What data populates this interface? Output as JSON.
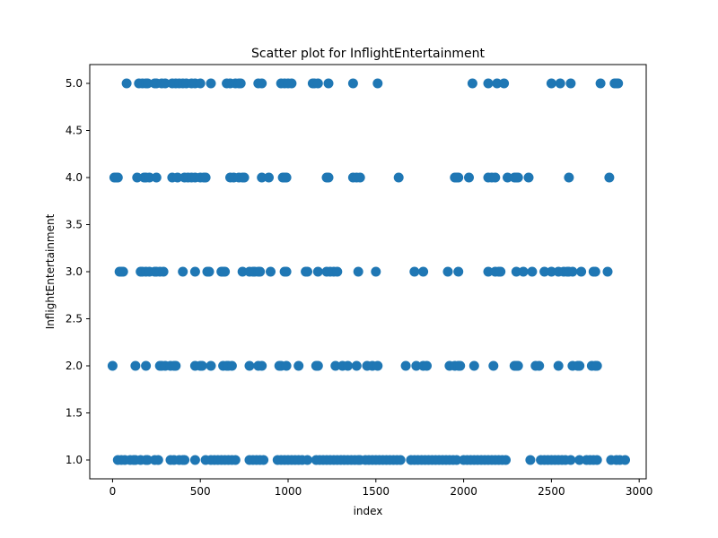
{
  "chart_data": {
    "type": "scatter",
    "title": "Scatter plot for InflightEntertainment",
    "xlabel": "index",
    "ylabel": "InflightEntertainment",
    "xlim": [
      -130,
      3040
    ],
    "ylim": [
      0.8,
      5.2
    ],
    "xticks": [
      0,
      500,
      1000,
      1500,
      2000,
      2500,
      3000
    ],
    "xtick_labels": [
      "0",
      "500",
      "1000",
      "1500",
      "2000",
      "2500",
      "3000"
    ],
    "yticks": [
      1.0,
      1.5,
      2.0,
      2.5,
      3.0,
      3.5,
      4.0,
      4.5,
      5.0
    ],
    "ytick_labels": [
      "1.0",
      "1.5",
      "2.0",
      "2.5",
      "3.0",
      "3.5",
      "4.0",
      "4.5",
      "5.0"
    ],
    "grid": false,
    "marker_color": "#1f77b4",
    "series": [
      {
        "points": [
          [
            80,
            5
          ],
          [
            150,
            5
          ],
          [
            170,
            5
          ],
          [
            190,
            5
          ],
          [
            200,
            5
          ],
          [
            240,
            5
          ],
          [
            250,
            5
          ],
          [
            280,
            5
          ],
          [
            300,
            5
          ],
          [
            340,
            5
          ],
          [
            360,
            5
          ],
          [
            380,
            5
          ],
          [
            400,
            5
          ],
          [
            420,
            5
          ],
          [
            450,
            5
          ],
          [
            470,
            5
          ],
          [
            500,
            5
          ],
          [
            560,
            5
          ],
          [
            650,
            5
          ],
          [
            670,
            5
          ],
          [
            700,
            5
          ],
          [
            720,
            5
          ],
          [
            730,
            5
          ],
          [
            830,
            5
          ],
          [
            850,
            5
          ],
          [
            960,
            5
          ],
          [
            980,
            5
          ],
          [
            1000,
            5
          ],
          [
            1020,
            5
          ],
          [
            1140,
            5
          ],
          [
            1150,
            5
          ],
          [
            1170,
            5
          ],
          [
            1230,
            5
          ],
          [
            1370,
            5
          ],
          [
            1510,
            5
          ],
          [
            2050,
            5
          ],
          [
            2140,
            5
          ],
          [
            2190,
            5
          ],
          [
            2230,
            5
          ],
          [
            2500,
            5
          ],
          [
            2550,
            5
          ],
          [
            2610,
            5
          ],
          [
            2780,
            5
          ],
          [
            2860,
            5
          ],
          [
            2870,
            5
          ],
          [
            2880,
            5
          ],
          [
            10,
            4
          ],
          [
            20,
            4
          ],
          [
            30,
            4
          ],
          [
            140,
            4
          ],
          [
            180,
            4
          ],
          [
            190,
            4
          ],
          [
            210,
            4
          ],
          [
            250,
            4
          ],
          [
            340,
            4
          ],
          [
            370,
            4
          ],
          [
            410,
            4
          ],
          [
            430,
            4
          ],
          [
            450,
            4
          ],
          [
            470,
            4
          ],
          [
            500,
            4
          ],
          [
            520,
            4
          ],
          [
            530,
            4
          ],
          [
            670,
            4
          ],
          [
            690,
            4
          ],
          [
            720,
            4
          ],
          [
            740,
            4
          ],
          [
            750,
            4
          ],
          [
            850,
            4
          ],
          [
            890,
            4
          ],
          [
            970,
            4
          ],
          [
            980,
            4
          ],
          [
            990,
            4
          ],
          [
            1220,
            4
          ],
          [
            1230,
            4
          ],
          [
            1370,
            4
          ],
          [
            1390,
            4
          ],
          [
            1410,
            4
          ],
          [
            1630,
            4
          ],
          [
            1950,
            4
          ],
          [
            1960,
            4
          ],
          [
            1970,
            4
          ],
          [
            2030,
            4
          ],
          [
            2140,
            4
          ],
          [
            2160,
            4
          ],
          [
            2180,
            4
          ],
          [
            2250,
            4
          ],
          [
            2290,
            4
          ],
          [
            2300,
            4
          ],
          [
            2310,
            4
          ],
          [
            2370,
            4
          ],
          [
            2600,
            4
          ],
          [
            2830,
            4
          ],
          [
            40,
            3
          ],
          [
            50,
            3
          ],
          [
            60,
            3
          ],
          [
            160,
            3
          ],
          [
            170,
            3
          ],
          [
            190,
            3
          ],
          [
            210,
            3
          ],
          [
            240,
            3
          ],
          [
            250,
            3
          ],
          [
            270,
            3
          ],
          [
            290,
            3
          ],
          [
            400,
            3
          ],
          [
            470,
            3
          ],
          [
            540,
            3
          ],
          [
            550,
            3
          ],
          [
            620,
            3
          ],
          [
            630,
            3
          ],
          [
            640,
            3
          ],
          [
            740,
            3
          ],
          [
            780,
            3
          ],
          [
            800,
            3
          ],
          [
            810,
            3
          ],
          [
            830,
            3
          ],
          [
            840,
            3
          ],
          [
            900,
            3
          ],
          [
            980,
            3
          ],
          [
            990,
            3
          ],
          [
            1100,
            3
          ],
          [
            1110,
            3
          ],
          [
            1170,
            3
          ],
          [
            1220,
            3
          ],
          [
            1240,
            3
          ],
          [
            1260,
            3
          ],
          [
            1280,
            3
          ],
          [
            1400,
            3
          ],
          [
            1500,
            3
          ],
          [
            1720,
            3
          ],
          [
            1770,
            3
          ],
          [
            1910,
            3
          ],
          [
            1970,
            3
          ],
          [
            2140,
            3
          ],
          [
            2180,
            3
          ],
          [
            2200,
            3
          ],
          [
            2210,
            3
          ],
          [
            2300,
            3
          ],
          [
            2340,
            3
          ],
          [
            2390,
            3
          ],
          [
            2460,
            3
          ],
          [
            2500,
            3
          ],
          [
            2540,
            3
          ],
          [
            2570,
            3
          ],
          [
            2590,
            3
          ],
          [
            2600,
            3
          ],
          [
            2620,
            3
          ],
          [
            2670,
            3
          ],
          [
            2740,
            3
          ],
          [
            2750,
            3
          ],
          [
            2820,
            3
          ],
          [
            0,
            2
          ],
          [
            130,
            2
          ],
          [
            190,
            2
          ],
          [
            270,
            2
          ],
          [
            280,
            2
          ],
          [
            300,
            2
          ],
          [
            330,
            2
          ],
          [
            350,
            2
          ],
          [
            360,
            2
          ],
          [
            470,
            2
          ],
          [
            500,
            2
          ],
          [
            510,
            2
          ],
          [
            560,
            2
          ],
          [
            630,
            2
          ],
          [
            650,
            2
          ],
          [
            660,
            2
          ],
          [
            680,
            2
          ],
          [
            780,
            2
          ],
          [
            830,
            2
          ],
          [
            850,
            2
          ],
          [
            950,
            2
          ],
          [
            960,
            2
          ],
          [
            990,
            2
          ],
          [
            1060,
            2
          ],
          [
            1160,
            2
          ],
          [
            1170,
            2
          ],
          [
            1270,
            2
          ],
          [
            1310,
            2
          ],
          [
            1340,
            2
          ],
          [
            1390,
            2
          ],
          [
            1450,
            2
          ],
          [
            1480,
            2
          ],
          [
            1510,
            2
          ],
          [
            1670,
            2
          ],
          [
            1730,
            2
          ],
          [
            1770,
            2
          ],
          [
            1790,
            2
          ],
          [
            1920,
            2
          ],
          [
            1950,
            2
          ],
          [
            1970,
            2
          ],
          [
            1980,
            2
          ],
          [
            2060,
            2
          ],
          [
            2170,
            2
          ],
          [
            2290,
            2
          ],
          [
            2300,
            2
          ],
          [
            2310,
            2
          ],
          [
            2410,
            2
          ],
          [
            2430,
            2
          ],
          [
            2540,
            2
          ],
          [
            2620,
            2
          ],
          [
            2650,
            2
          ],
          [
            2660,
            2
          ],
          [
            2730,
            2
          ],
          [
            2750,
            2
          ],
          [
            2760,
            2
          ],
          [
            30,
            1
          ],
          [
            50,
            1
          ],
          [
            70,
            1
          ],
          [
            100,
            1
          ],
          [
            120,
            1
          ],
          [
            130,
            1
          ],
          [
            160,
            1
          ],
          [
            190,
            1
          ],
          [
            200,
            1
          ],
          [
            240,
            1
          ],
          [
            260,
            1
          ],
          [
            330,
            1
          ],
          [
            350,
            1
          ],
          [
            380,
            1
          ],
          [
            400,
            1
          ],
          [
            410,
            1
          ],
          [
            470,
            1
          ],
          [
            530,
            1
          ],
          [
            560,
            1
          ],
          [
            580,
            1
          ],
          [
            600,
            1
          ],
          [
            620,
            1
          ],
          [
            640,
            1
          ],
          [
            660,
            1
          ],
          [
            680,
            1
          ],
          [
            700,
            1
          ],
          [
            780,
            1
          ],
          [
            800,
            1
          ],
          [
            820,
            1
          ],
          [
            840,
            1
          ],
          [
            860,
            1
          ],
          [
            940,
            1
          ],
          [
            960,
            1
          ],
          [
            980,
            1
          ],
          [
            1000,
            1
          ],
          [
            1020,
            1
          ],
          [
            1040,
            1
          ],
          [
            1060,
            1
          ],
          [
            1080,
            1
          ],
          [
            1110,
            1
          ],
          [
            1160,
            1
          ],
          [
            1180,
            1
          ],
          [
            1200,
            1
          ],
          [
            1220,
            1
          ],
          [
            1240,
            1
          ],
          [
            1260,
            1
          ],
          [
            1280,
            1
          ],
          [
            1300,
            1
          ],
          [
            1320,
            1
          ],
          [
            1340,
            1
          ],
          [
            1360,
            1
          ],
          [
            1380,
            1
          ],
          [
            1400,
            1
          ],
          [
            1410,
            1
          ],
          [
            1440,
            1
          ],
          [
            1460,
            1
          ],
          [
            1480,
            1
          ],
          [
            1500,
            1
          ],
          [
            1520,
            1
          ],
          [
            1540,
            1
          ],
          [
            1560,
            1
          ],
          [
            1580,
            1
          ],
          [
            1600,
            1
          ],
          [
            1620,
            1
          ],
          [
            1640,
            1
          ],
          [
            1700,
            1
          ],
          [
            1720,
            1
          ],
          [
            1740,
            1
          ],
          [
            1760,
            1
          ],
          [
            1780,
            1
          ],
          [
            1800,
            1
          ],
          [
            1820,
            1
          ],
          [
            1840,
            1
          ],
          [
            1860,
            1
          ],
          [
            1880,
            1
          ],
          [
            1900,
            1
          ],
          [
            1920,
            1
          ],
          [
            1940,
            1
          ],
          [
            1960,
            1
          ],
          [
            2000,
            1
          ],
          [
            2020,
            1
          ],
          [
            2040,
            1
          ],
          [
            2060,
            1
          ],
          [
            2080,
            1
          ],
          [
            2100,
            1
          ],
          [
            2120,
            1
          ],
          [
            2140,
            1
          ],
          [
            2160,
            1
          ],
          [
            2180,
            1
          ],
          [
            2200,
            1
          ],
          [
            2220,
            1
          ],
          [
            2240,
            1
          ],
          [
            2380,
            1
          ],
          [
            2440,
            1
          ],
          [
            2460,
            1
          ],
          [
            2480,
            1
          ],
          [
            2500,
            1
          ],
          [
            2520,
            1
          ],
          [
            2540,
            1
          ],
          [
            2560,
            1
          ],
          [
            2580,
            1
          ],
          [
            2610,
            1
          ],
          [
            2660,
            1
          ],
          [
            2700,
            1
          ],
          [
            2720,
            1
          ],
          [
            2740,
            1
          ],
          [
            2760,
            1
          ],
          [
            2840,
            1
          ],
          [
            2870,
            1
          ],
          [
            2890,
            1
          ],
          [
            2920,
            1
          ]
        ]
      }
    ]
  }
}
